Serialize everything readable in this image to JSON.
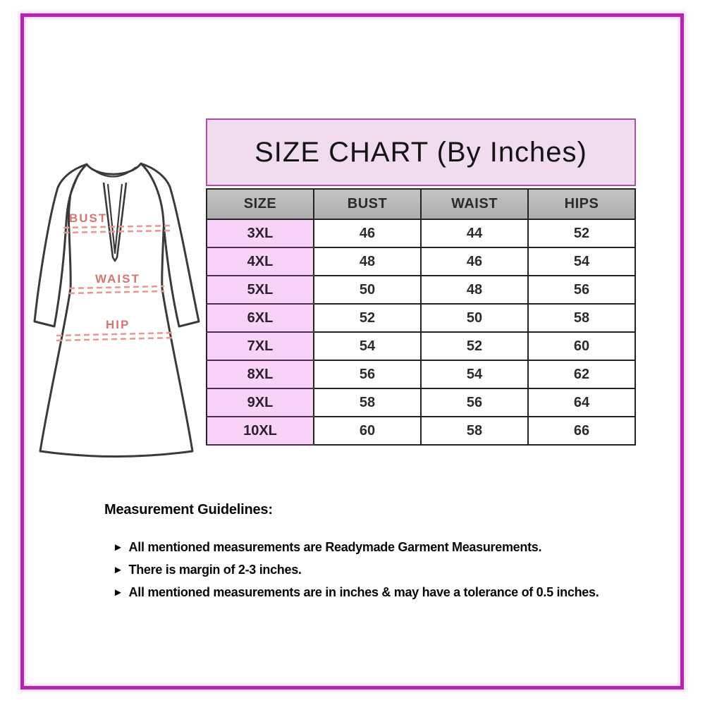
{
  "colors": {
    "frame_border": "#b126ad",
    "title_bg": "#f1dbee",
    "title_border": "#ab50a7",
    "header_bg": "#aeaeae",
    "size_cell_bg": "#f9d2f7",
    "label_color": "#d4766e",
    "dash_color": "#e89a92"
  },
  "chart_data": {
    "type": "table",
    "title": "SIZE CHART (By Inches)",
    "units": "inches",
    "columns": [
      "SIZE",
      "BUST",
      "WAIST",
      "HIPS"
    ],
    "rows": [
      [
        "3XL",
        46,
        44,
        52
      ],
      [
        "4XL",
        48,
        46,
        54
      ],
      [
        "5XL",
        50,
        48,
        56
      ],
      [
        "6XL",
        52,
        50,
        58
      ],
      [
        "7XL",
        54,
        52,
        60
      ],
      [
        "8XL",
        56,
        54,
        62
      ],
      [
        "9XL",
        58,
        56,
        64
      ],
      [
        "10XL",
        60,
        58,
        66
      ]
    ]
  },
  "diagram": {
    "labels": {
      "bust": "BUST",
      "waist": "WAIST",
      "hip": "HIP"
    }
  },
  "guidelines": {
    "heading": "Measurement Guidelines:",
    "bullet_icon": "►",
    "items": [
      "All mentioned measurements are Readymade Garment Measurements.",
      "There is margin of 2-3 inches.",
      "All mentioned measurements are in inches & may have a tolerance of 0.5 inches."
    ]
  }
}
